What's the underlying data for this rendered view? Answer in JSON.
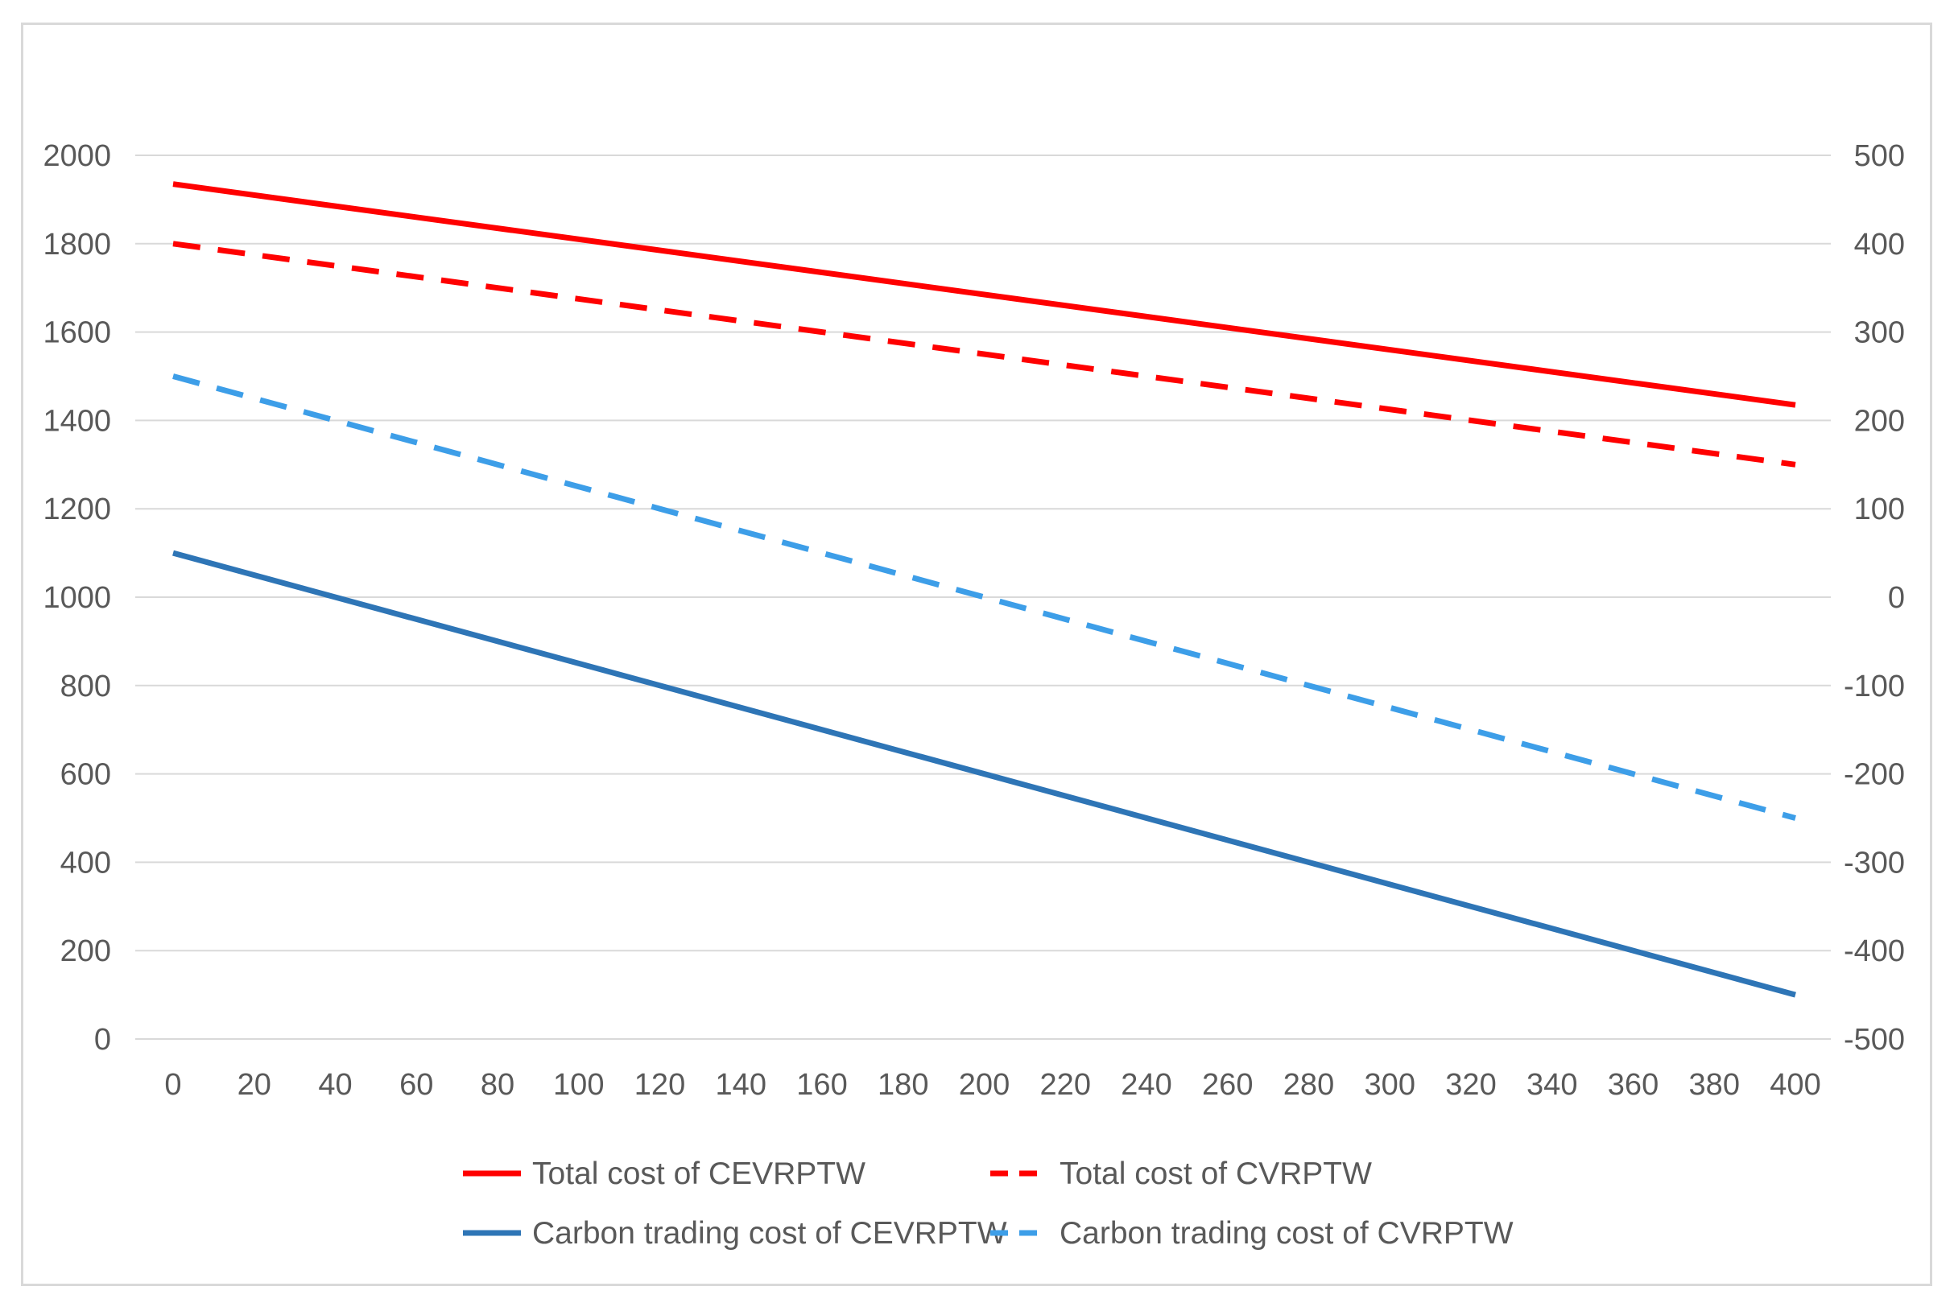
{
  "chart_data": {
    "type": "line",
    "title": "",
    "xlabel": "",
    "ylabel": "",
    "y2label": "",
    "x": [
      0,
      20,
      40,
      60,
      80,
      100,
      120,
      140,
      160,
      180,
      200,
      220,
      240,
      260,
      280,
      300,
      320,
      340,
      360,
      380,
      400
    ],
    "ylim": [
      0,
      2000
    ],
    "y2lim": [
      -500,
      500
    ],
    "yticks": [
      0,
      200,
      400,
      600,
      800,
      1000,
      1200,
      1400,
      1600,
      1800,
      2000
    ],
    "y2ticks": [
      -500,
      -400,
      -300,
      -200,
      -100,
      0,
      100,
      200,
      300,
      400,
      500
    ],
    "grid": true,
    "legend_position": "bottom",
    "series": [
      {
        "name": "Total cost of CEVRPTW",
        "axis": "left",
        "color": "#ff0000",
        "dashed": false,
        "x": [
          0,
          400
        ],
        "values": [
          1935,
          1435
        ]
      },
      {
        "name": "Total cost of CVRPTW",
        "axis": "left",
        "color": "#ff0000",
        "dashed": true,
        "x": [
          0,
          400
        ],
        "values": [
          1800,
          1300
        ]
      },
      {
        "name": "Carbon trading cost of CEVRPTW",
        "axis": "right",
        "color": "#2e75b6",
        "dashed": false,
        "x": [
          0,
          400
        ],
        "values": [
          50,
          -450
        ]
      },
      {
        "name": "Carbon trading cost of CVRPTW",
        "axis": "right",
        "color": "#3d9ee8",
        "dashed": true,
        "x": [
          0,
          400
        ],
        "values": [
          250,
          -250
        ]
      }
    ]
  },
  "colors": {
    "grid": "#d9d9d9",
    "tick_text": "#595959",
    "frame": "#d9d9d9"
  }
}
